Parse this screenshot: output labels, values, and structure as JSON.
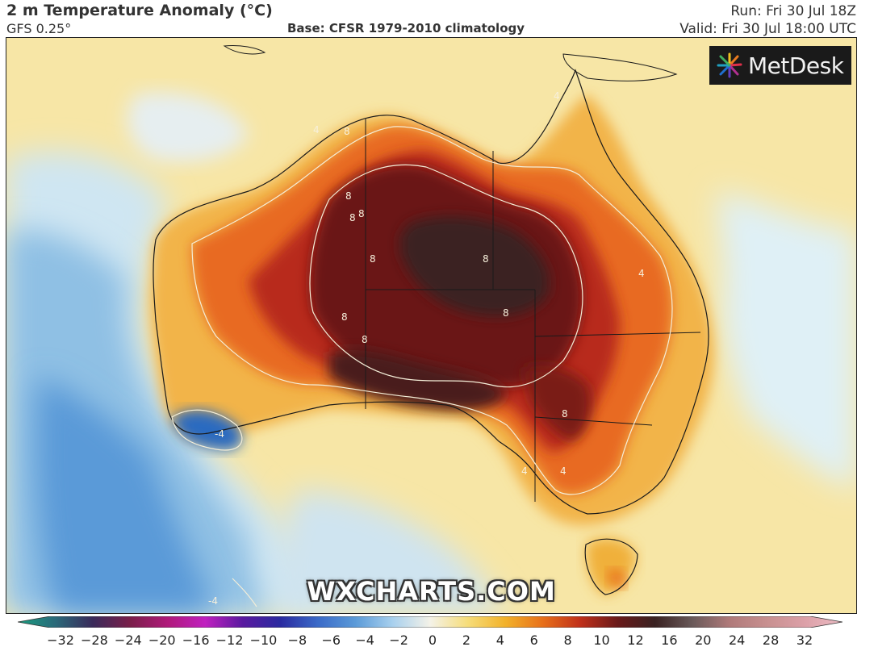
{
  "header": {
    "title": "2 m Temperature Anomaly (°C)",
    "model": "GFS 0.25°",
    "base": "Base: CFSR 1979-2010 climatology",
    "run": "Run: Fri 30 Jul 18Z",
    "valid": "Valid: Fri 30 Jul 18:00 UTC"
  },
  "logo": {
    "text": "MetDesk",
    "icon": "starburst-icon"
  },
  "watermark": "WXCHARTS.COM",
  "contour_labels": [
    "4",
    "8",
    "8",
    "8",
    "8",
    "8",
    "8",
    "8",
    "8",
    "8",
    "8",
    "4",
    "4",
    "4",
    "4",
    "-4",
    "-4"
  ],
  "colorbar": {
    "ticks": [
      "−32",
      "−28",
      "−24",
      "−20",
      "−16",
      "−12",
      "−10",
      "−8",
      "−6",
      "−4",
      "−2",
      "0",
      "2",
      "4",
      "6",
      "8",
      "10",
      "12",
      "16",
      "20",
      "24",
      "28",
      "32"
    ],
    "colors": [
      "#1a9e80",
      "#2a6a7a",
      "#3a2a5a",
      "#7a1f4a",
      "#b01a7a",
      "#c020c0",
      "#5a1aa0",
      "#2a2aa0",
      "#3a6ac8",
      "#5a9ad8",
      "#a8d0ee",
      "#f4f2e8",
      "#f6dd7a",
      "#f2b22a",
      "#e8701a",
      "#c0301a",
      "#6a1a1a",
      "#3a2222",
      "#6a5a5a",
      "#b07a7a",
      "#c89090",
      "#dca0a8",
      "#ecbcc4"
    ]
  }
}
